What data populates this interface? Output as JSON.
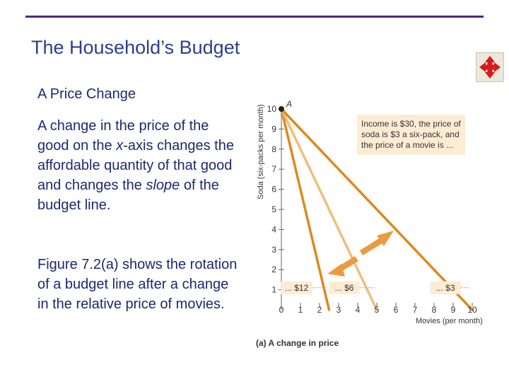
{
  "slide": {
    "title": "The Household’s Budget",
    "section": "A Price Change",
    "paragraph1": [
      {
        "text": "A change in the price of the good on the ",
        "italic": false
      },
      {
        "text": "x",
        "italic": true
      },
      {
        "text": "-axis changes the affordable quantity of that good and changes the ",
        "italic": false
      },
      {
        "text": "slope",
        "italic": true
      },
      {
        "text": " of the budget line.",
        "italic": false
      }
    ],
    "paragraph2": "Figure 7.2(a) shows the rotation of a budget line after a change in the relative price of movies."
  },
  "toolbar": {
    "move_icon": "four-way-arrows-icon"
  },
  "colors": {
    "title": "#2a3f8f",
    "text": "#1a2a6e",
    "rule": "#4b2a78",
    "line_dark": "#dc8a1e",
    "line_light": "#f0be78",
    "arrow": "#ec9a40",
    "infobox": "#fdecd4"
  },
  "chart_data": {
    "type": "line",
    "caption": "(a) A change in price",
    "xlabel": "Movies (per month)",
    "ylabel": "Soda (six-packs per month)",
    "xlim": [
      0,
      10
    ],
    "ylim": [
      0,
      10
    ],
    "x_ticks": [
      "0",
      "1",
      "2",
      "3",
      "4",
      "5",
      "6",
      "7",
      "8",
      "9",
      "10"
    ],
    "y_ticks": [
      "1",
      "2",
      "3",
      "4",
      "5",
      "6",
      "7",
      "8",
      "9",
      "10"
    ],
    "point_label": "A",
    "point": {
      "x": 0,
      "y": 10
    },
    "info_box": [
      "Income is $30, the price of",
      "soda is $3 a six-pack, and",
      "the price of a movie is ..."
    ],
    "series": [
      {
        "label": "... $12",
        "points": [
          [
            0,
            10
          ],
          [
            2.5,
            0
          ]
        ],
        "color": "line_dark"
      },
      {
        "label": "... $6",
        "points": [
          [
            0,
            10
          ],
          [
            5,
            0
          ]
        ],
        "color": "line_light"
      },
      {
        "label": "... $3",
        "points": [
          [
            0,
            10
          ],
          [
            10,
            0
          ]
        ],
        "color": "line_dark"
      }
    ]
  }
}
